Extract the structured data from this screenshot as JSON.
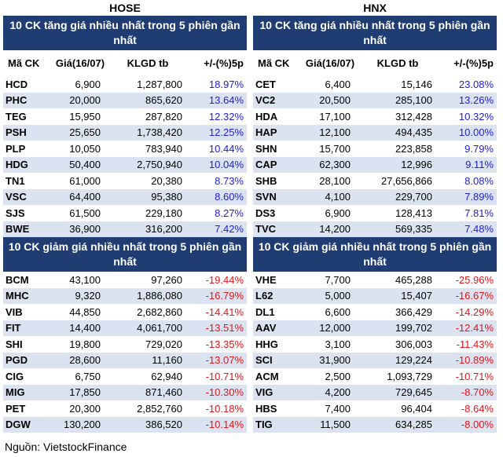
{
  "source": "Nguồn: VietstockFinance",
  "columns": {
    "code": "Mã CK",
    "price": "Giá(16/07)",
    "vol": "KLGD tb",
    "pct": "+/-(%)5p"
  },
  "exchanges": [
    {
      "name": "HOSE",
      "gainers_title": "10 CK tăng giá nhiều nhất trong 5 phiên gần nhất",
      "losers_title": "10 CK giảm giá nhiều nhất trong 5 phiên gần nhất",
      "gainers": [
        {
          "code": "HCD",
          "price": "6,900",
          "vol": "1,287,800",
          "pct": "18.97%"
        },
        {
          "code": "PHC",
          "price": "20,000",
          "vol": "865,620",
          "pct": "13.64%"
        },
        {
          "code": "TEG",
          "price": "15,950",
          "vol": "287,820",
          "pct": "12.32%"
        },
        {
          "code": "PSH",
          "price": "25,650",
          "vol": "1,738,420",
          "pct": "12.25%"
        },
        {
          "code": "PLP",
          "price": "10,050",
          "vol": "783,940",
          "pct": "10.44%"
        },
        {
          "code": "HDG",
          "price": "50,400",
          "vol": "2,750,940",
          "pct": "10.04%"
        },
        {
          "code": "TN1",
          "price": "61,000",
          "vol": "20,380",
          "pct": "8.73%"
        },
        {
          "code": "VSC",
          "price": "64,400",
          "vol": "95,380",
          "pct": "8.60%"
        },
        {
          "code": "SJS",
          "price": "61,500",
          "vol": "229,180",
          "pct": "8.27%"
        },
        {
          "code": "BWE",
          "price": "36,900",
          "vol": "316,200",
          "pct": "7.42%"
        }
      ],
      "losers": [
        {
          "code": "BCM",
          "price": "43,100",
          "vol": "97,260",
          "pct": "-19.44%"
        },
        {
          "code": "MHC",
          "price": "9,320",
          "vol": "1,886,080",
          "pct": "-16.79%"
        },
        {
          "code": "VIB",
          "price": "44,850",
          "vol": "2,682,860",
          "pct": "-14.41%"
        },
        {
          "code": "FIT",
          "price": "14,400",
          "vol": "4,061,700",
          "pct": "-13.51%"
        },
        {
          "code": "SHI",
          "price": "19,800",
          "vol": "729,020",
          "pct": "-13.35%"
        },
        {
          "code": "PGD",
          "price": "28,600",
          "vol": "11,160",
          "pct": "-13.07%"
        },
        {
          "code": "CIG",
          "price": "6,750",
          "vol": "62,940",
          "pct": "-10.71%"
        },
        {
          "code": "MIG",
          "price": "17,850",
          "vol": "871,460",
          "pct": "-10.30%"
        },
        {
          "code": "PET",
          "price": "20,300",
          "vol": "2,852,760",
          "pct": "-10.18%"
        },
        {
          "code": "DGW",
          "price": "130,200",
          "vol": "386,520",
          "pct": "-10.14%"
        }
      ]
    },
    {
      "name": "HNX",
      "gainers_title": "10 CK tăng giá nhiều nhất trong 5 phiên gần nhất",
      "losers_title": "10 CK giảm giá nhiều nhất trong 5 phiên gần nhất",
      "gainers": [
        {
          "code": "CET",
          "price": "6,400",
          "vol": "15,146",
          "pct": "23.08%"
        },
        {
          "code": "VC2",
          "price": "20,500",
          "vol": "285,100",
          "pct": "13.26%"
        },
        {
          "code": "HDA",
          "price": "17,100",
          "vol": "312,428",
          "pct": "10.32%"
        },
        {
          "code": "HAP",
          "price": "12,100",
          "vol": "494,435",
          "pct": "10.00%"
        },
        {
          "code": "SHN",
          "price": "15,700",
          "vol": "223,858",
          "pct": "9.79%"
        },
        {
          "code": "CAP",
          "price": "62,300",
          "vol": "12,996",
          "pct": "9.11%"
        },
        {
          "code": "SHB",
          "price": "28,100",
          "vol": "27,656,866",
          "pct": "8.08%"
        },
        {
          "code": "SVN",
          "price": "4,100",
          "vol": "229,700",
          "pct": "7.89%"
        },
        {
          "code": "DS3",
          "price": "6,900",
          "vol": "128,413",
          "pct": "7.81%"
        },
        {
          "code": "TVC",
          "price": "14,200",
          "vol": "569,335",
          "pct": "7.48%"
        }
      ],
      "losers": [
        {
          "code": "VHE",
          "price": "7,700",
          "vol": "465,288",
          "pct": "-25.96%"
        },
        {
          "code": "L62",
          "price": "5,000",
          "vol": "15,407",
          "pct": "-16.67%"
        },
        {
          "code": "DL1",
          "price": "6,600",
          "vol": "366,429",
          "pct": "-14.29%"
        },
        {
          "code": "AAV",
          "price": "12,000",
          "vol": "199,702",
          "pct": "-12.41%"
        },
        {
          "code": "HHG",
          "price": "3,100",
          "vol": "306,003",
          "pct": "-11.43%"
        },
        {
          "code": "SCI",
          "price": "31,900",
          "vol": "129,224",
          "pct": "-10.89%"
        },
        {
          "code": "ACM",
          "price": "2,500",
          "vol": "1,093,729",
          "pct": "-10.71%"
        },
        {
          "code": "VIG",
          "price": "4,200",
          "vol": "729,645",
          "pct": "-8.70%"
        },
        {
          "code": "HBS",
          "price": "7,400",
          "vol": "96,404",
          "pct": "-8.64%"
        },
        {
          "code": "TIG",
          "price": "11,500",
          "vol": "634,285",
          "pct": "-8.00%"
        }
      ]
    }
  ]
}
